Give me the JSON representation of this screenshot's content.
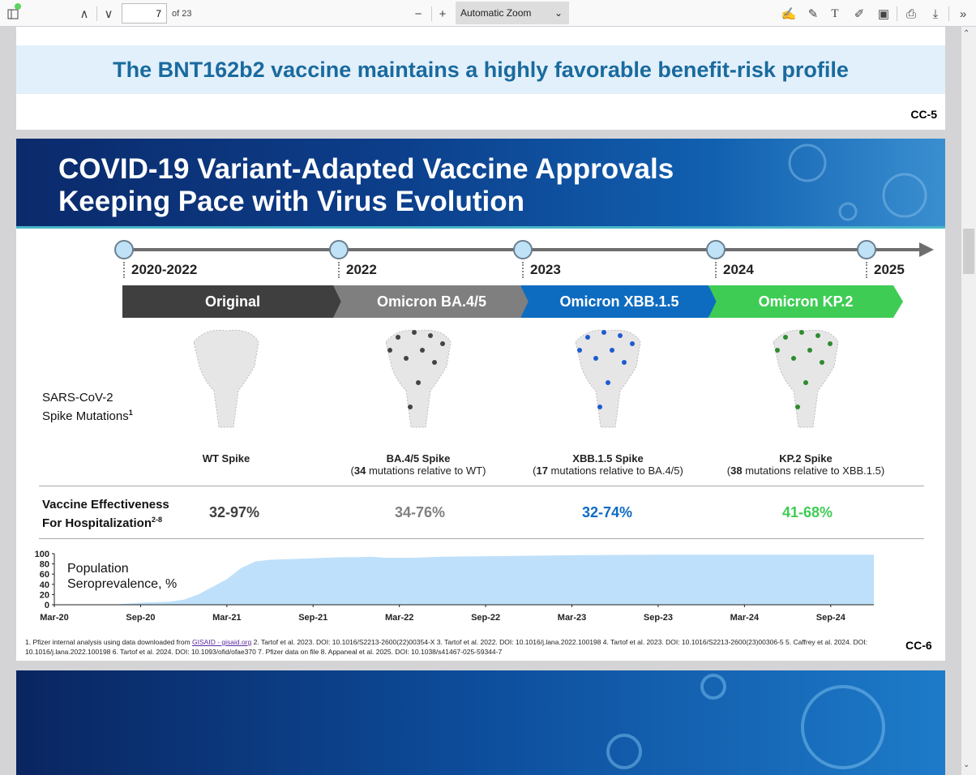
{
  "toolbar": {
    "page_number": "7",
    "page_count": "of 23",
    "zoom": "Automatic Zoom",
    "icons": [
      "sidebar-toggle-icon",
      "previous-page-icon",
      "next-page-icon",
      "zoom-out-icon",
      "zoom-in-icon",
      "signature-icon",
      "highlight-icon",
      "text-icon",
      "draw-icon",
      "image-icon",
      "print-icon",
      "save-icon",
      "tools-menu-icon"
    ]
  },
  "page6": {
    "title": "The BNT162b2 vaccine maintains a highly favorable benefit-risk profile",
    "slide_number": "CC-5"
  },
  "page7": {
    "title_line1": "COVID-19 Variant-Adapted Vaccine Approvals",
    "title_line2": "Keeping Pace with Virus Evolution",
    "years": [
      "2020-2022",
      "2022",
      "2023",
      "2024",
      "2025"
    ],
    "variants": [
      {
        "label": "Original",
        "color": "#3f3f3f",
        "spike": "WT Spike",
        "note_num": "",
        "note_text": "",
        "ve": "32-97%",
        "ve_color": "#404040",
        "dot": "#555555"
      },
      {
        "label": "Omicron BA.4/5",
        "color": "#7f7f7f",
        "spike": "BA.4/5 Spike",
        "note_num": "34",
        "note_text": " mutations relative to WT)",
        "ve": "34-76%",
        "ve_color": "#808080",
        "dot": "#444444"
      },
      {
        "label": "Omicron XBB.1.5",
        "color": "#0e6cc0",
        "spike": "XBB.1.5 Spike",
        "note_num": "17",
        "note_text": " mutations relative to BA.4/5)",
        "ve": "32-74%",
        "ve_color": "#0e6cc0",
        "dot": "#1e5bd0"
      },
      {
        "label": "Omicron KP.2",
        "color": "#3fcc55",
        "spike": "KP.2 Spike",
        "note_num": "38",
        "note_text": " mutations relative to XBB.1.5)",
        "ve": "41-68%",
        "ve_color": "#3fcc55",
        "dot": "#2e8b2e"
      }
    ],
    "spike_label_1": "SARS-CoV-2",
    "spike_label_2": "Spike Mutations",
    "spike_sup": "1",
    "ve_label_1": "Vaccine Effectiveness",
    "ve_label_2": "For Hospitalization",
    "ve_sup": "2-8",
    "footnote_pre": "1. Pfizer internal analysis using data downloaded from ",
    "footnote_link": "GISAID - gisaid.org",
    "footnote_post": " 2. Tartof et al. 2023. DOI: 10.1016/S2213-2600(22)00354-X 3. Tartof et al. 2022. DOI: 10.1016/j.lana.2022.100198 4. Tartof et al. 2023. DOI: 10.1016/S2213-2600(23)00306-5 5. Caffrey et al. 2024. DOI: 10.1016/j.lana.2022.100198 6. Tartof et al. 2024. DOI: 10.1093/ofid/ofae370 7. Pfizer data on file 8. Appaneal et al. 2025. DOI: 10.1038/s41467-025-59344-7",
    "slide_number": "CC-6"
  },
  "chart_data": {
    "type": "area",
    "title": "Population Seroprevalence, %",
    "title_line1": "Population",
    "title_line2": "Seroprevalence, %",
    "xlabel": "",
    "ylabel": "",
    "x_months_since_mar20": [
      0,
      4,
      5,
      6,
      7,
      8,
      9,
      10,
      11,
      12,
      13,
      14,
      15,
      16,
      18,
      20,
      21,
      22,
      23,
      25,
      27,
      30,
      36,
      42,
      48,
      57
    ],
    "values": [
      0,
      0,
      2,
      4,
      5,
      6,
      10,
      20,
      35,
      50,
      72,
      85,
      88,
      89,
      91,
      93,
      93,
      94,
      92,
      92,
      94,
      95,
      97,
      98,
      98,
      98
    ],
    "ylim": [
      0,
      100
    ],
    "xlim": [
      0,
      57
    ],
    "yticks": [
      0,
      20,
      40,
      60,
      80,
      100
    ],
    "xticks": [
      {
        "m": 0,
        "label": "Mar-20"
      },
      {
        "m": 6,
        "label": "Sep-20"
      },
      {
        "m": 12,
        "label": "Mar-21"
      },
      {
        "m": 18,
        "label": "Sep-21"
      },
      {
        "m": 24,
        "label": "Mar-22"
      },
      {
        "m": 30,
        "label": "Sep-22"
      },
      {
        "m": 36,
        "label": "Mar-23"
      },
      {
        "m": 42,
        "label": "Sep-23"
      },
      {
        "m": 48,
        "label": "Mar-24"
      },
      {
        "m": 54,
        "label": "Sep-24"
      }
    ],
    "fill": "#bfe0fa",
    "grid": false
  }
}
